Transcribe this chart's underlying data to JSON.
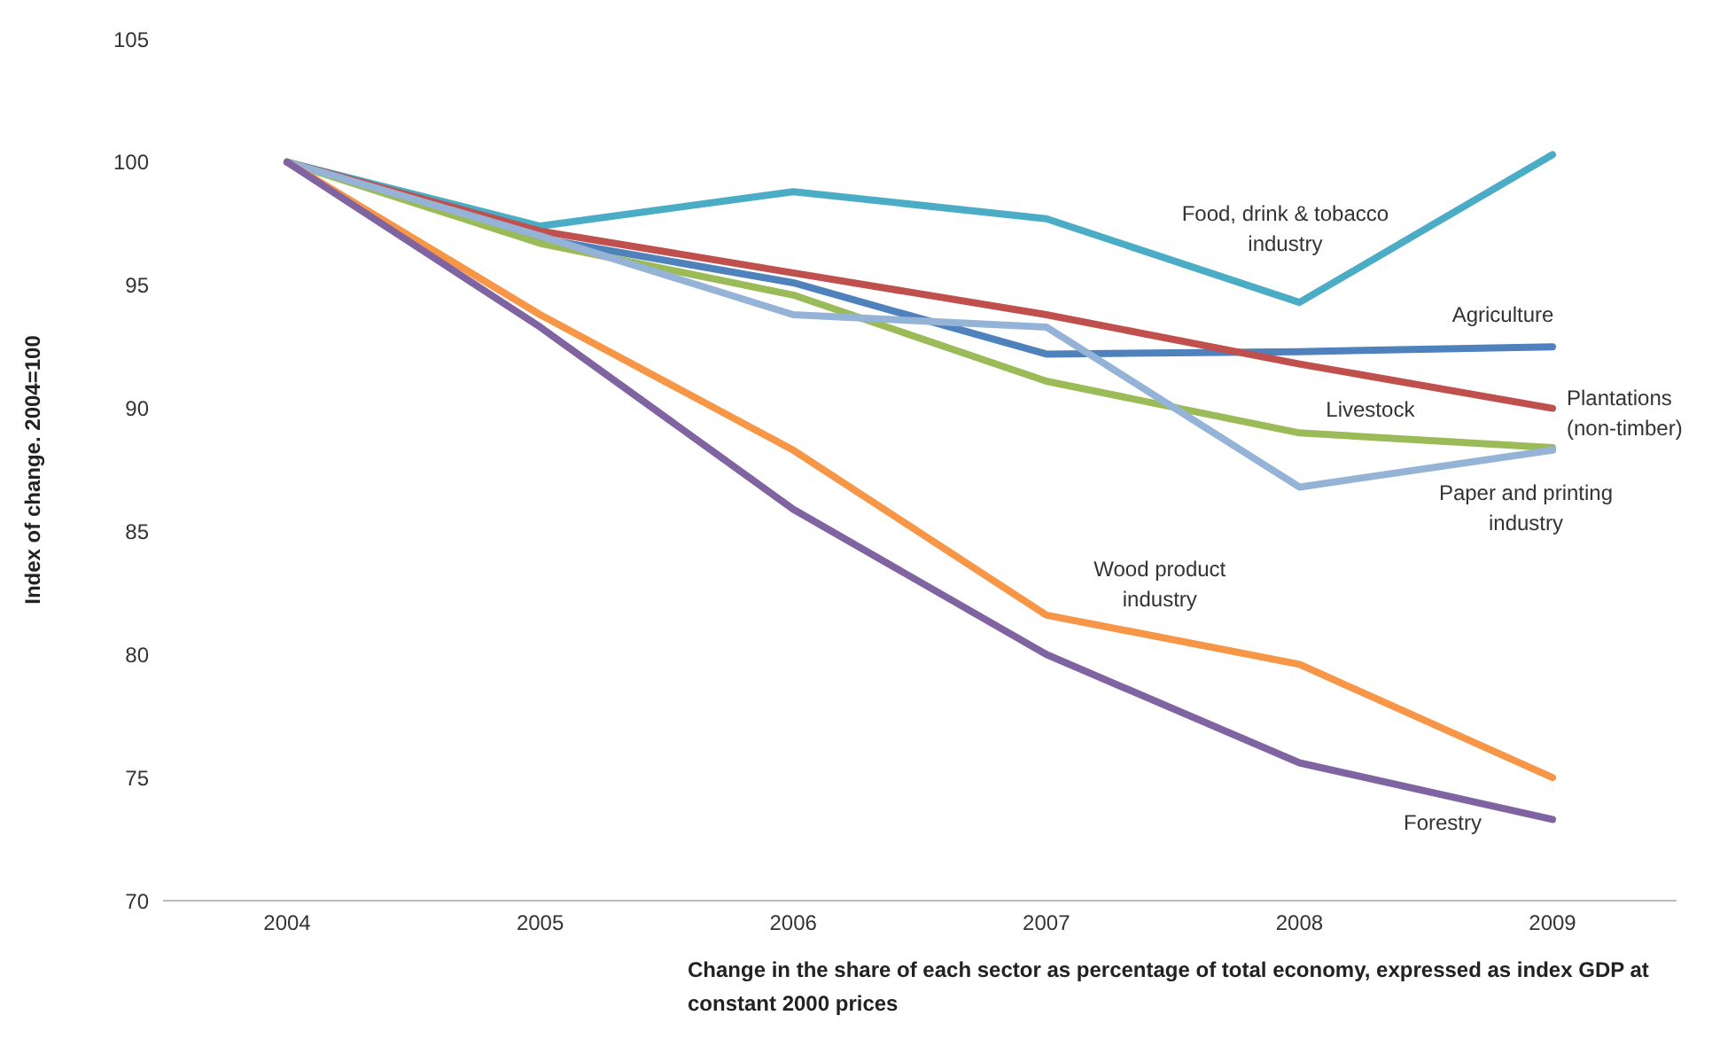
{
  "chart_data": {
    "type": "line",
    "ylabel": "Index of change. 2004=100",
    "xlabel": "Change in the share of each sector as percentage of total economy, expressed as index GDP at constant 2000 prices",
    "categories": [
      "2004",
      "2005",
      "2006",
      "2007",
      "2008",
      "2009"
    ],
    "ylim": [
      70,
      105
    ],
    "yticks": [
      70,
      75,
      80,
      85,
      90,
      95,
      100,
      105
    ],
    "grid": false,
    "legend": false,
    "marker": "none",
    "line_style": "solid",
    "series": [
      {
        "name": "Food, drink & tobacco industry",
        "color": "#4bacc6",
        "values": [
          100,
          97.4,
          98.8,
          97.7,
          94.3,
          100.3
        ]
      },
      {
        "name": "Agriculture",
        "color": "#4f81bd",
        "values": [
          100,
          96.9,
          95.1,
          92.2,
          92.3,
          92.5
        ]
      },
      {
        "name": "Plantations (non-timber)",
        "color": "#c0504d",
        "values": [
          100,
          97.2,
          95.5,
          93.8,
          91.8,
          90.0
        ]
      },
      {
        "name": "Livestock",
        "color": "#9bbb59",
        "values": [
          100,
          96.7,
          94.6,
          91.1,
          89.0,
          88.4
        ]
      },
      {
        "name": "Paper and printing industry",
        "color": "#95b3d7",
        "values": [
          100,
          97.0,
          93.8,
          93.3,
          86.8,
          88.3
        ]
      },
      {
        "name": "Wood product industry",
        "color": "#f79646",
        "values": [
          100,
          93.8,
          88.3,
          81.6,
          79.6,
          75.0
        ]
      },
      {
        "name": "Forestry",
        "color": "#8064a2",
        "values": [
          100,
          93.3,
          85.9,
          80.0,
          75.6,
          73.3
        ]
      }
    ]
  }
}
